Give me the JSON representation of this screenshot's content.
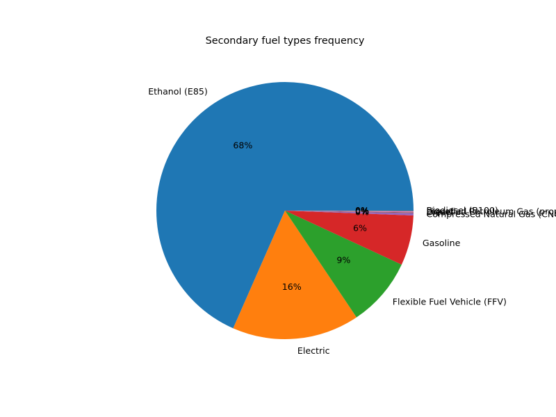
{
  "chart_data": {
    "type": "pie",
    "title": "Secondary fuel types frequency",
    "slices": [
      {
        "label": "Ethanol (E85)",
        "value": 68.4,
        "pct_label": "68%",
        "color": "#1f77b4"
      },
      {
        "label": "Electric",
        "value": 16.0,
        "pct_label": "16%",
        "color": "#ff7f0e"
      },
      {
        "label": "Flexible Fuel Vehicle (FFV)",
        "value": 8.7,
        "pct_label": "9%",
        "color": "#2ca02c"
      },
      {
        "label": "Gasoline",
        "value": 6.3,
        "pct_label": "6%",
        "color": "#d62728"
      },
      {
        "label": "Compressed Natural Gas (CNG)",
        "value": 0.3,
        "pct_label": "0%",
        "color": "#9467bd"
      },
      {
        "label": "Diesel",
        "value": 0.1,
        "pct_label": "0%",
        "color": "#8c564b"
      },
      {
        "label": "Liquefied Petroleum Gas (propane)",
        "value": 0.1,
        "pct_label": "0%",
        "color": "#e377c2"
      },
      {
        "label": "Biodiesel (B100)",
        "value": 0.1,
        "pct_label": "0%",
        "color": "#7f7f7f"
      }
    ],
    "legend": "none"
  }
}
